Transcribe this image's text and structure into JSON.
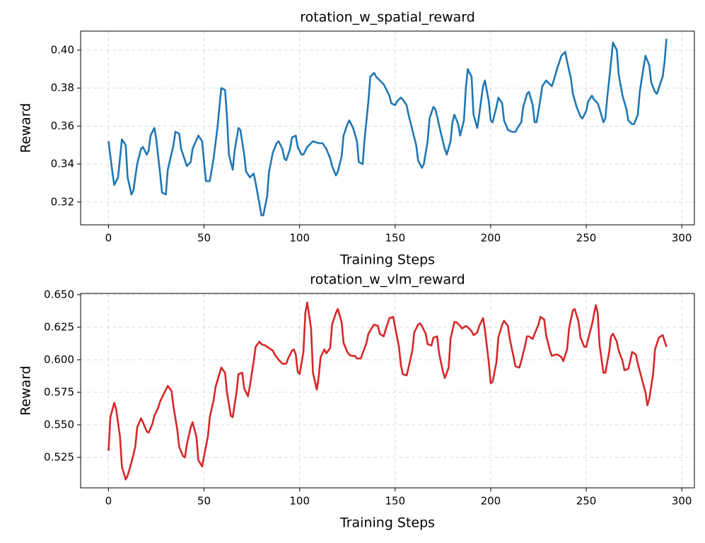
{
  "chart_data": [
    {
      "type": "line",
      "title": "rotation_w_spatial_reward",
      "xlabel": "Training Steps",
      "ylabel": "Reward",
      "color": "#1f77b4",
      "grid": true,
      "xlim": [
        -14.6,
        306.6
      ],
      "xticks": [
        0,
        50,
        100,
        150,
        200,
        250,
        300
      ],
      "ylim": [
        0.308,
        0.41
      ],
      "yticks": [
        0.32,
        0.34,
        0.36,
        0.38,
        {
          "value": 0.4,
          "label": "0.40"
        }
      ],
      "x": [
        0,
        2,
        3,
        5,
        7,
        9,
        10,
        12,
        13,
        15,
        17,
        18,
        20,
        21,
        22,
        24,
        25,
        27,
        28,
        30,
        31,
        34,
        35,
        37,
        38,
        40,
        41,
        43,
        44,
        47,
        49,
        50,
        51,
        53,
        55,
        57,
        59,
        61,
        62,
        63,
        65,
        66,
        68,
        69,
        71,
        72,
        74,
        76,
        77,
        79,
        80,
        81,
        83,
        84,
        86,
        88,
        89,
        91,
        92,
        93,
        95,
        96,
        98,
        99,
        101,
        102,
        104,
        106,
        107,
        110,
        112,
        114,
        116,
        117,
        119,
        120,
        122,
        123,
        125,
        126,
        128,
        130,
        131,
        133,
        134,
        136,
        137,
        139,
        140,
        142,
        144,
        145,
        147,
        148,
        150,
        151,
        153,
        154,
        156,
        157,
        159,
        161,
        162,
        164,
        165,
        167,
        168,
        170,
        171,
        172,
        174,
        176,
        177,
        179,
        180,
        181,
        183,
        184,
        186,
        187,
        188,
        190,
        191,
        193,
        194,
        196,
        197,
        199,
        200,
        201,
        203,
        204,
        206,
        207,
        209,
        211,
        213,
        214,
        216,
        217,
        219,
        220,
        222,
        223,
        224,
        226,
        227,
        229,
        231,
        232,
        233,
        235,
        237,
        239,
        240,
        242,
        243,
        245,
        247,
        248,
        250,
        251,
        253,
        254,
        256,
        257,
        259,
        260,
        261,
        263,
        264,
        266,
        267,
        269,
        271,
        272,
        274,
        275,
        277,
        278,
        280,
        281,
        283,
        284,
        286,
        287,
        288,
        290,
        291,
        292
      ],
      "values": [
        0.352,
        0.336,
        0.329,
        0.333,
        0.353,
        0.35,
        0.333,
        0.324,
        0.326,
        0.34,
        0.348,
        0.349,
        0.345,
        0.347,
        0.355,
        0.359,
        0.353,
        0.335,
        0.325,
        0.324,
        0.337,
        0.35,
        0.357,
        0.356,
        0.348,
        0.342,
        0.339,
        0.341,
        0.348,
        0.355,
        0.352,
        0.341,
        0.331,
        0.331,
        0.343,
        0.359,
        0.38,
        0.379,
        0.365,
        0.345,
        0.337,
        0.347,
        0.359,
        0.358,
        0.345,
        0.336,
        0.333,
        0.335,
        0.33,
        0.319,
        0.313,
        0.313,
        0.323,
        0.336,
        0.346,
        0.351,
        0.352,
        0.348,
        0.343,
        0.342,
        0.348,
        0.354,
        0.355,
        0.349,
        0.345,
        0.345,
        0.349,
        0.351,
        0.352,
        0.351,
        0.351,
        0.348,
        0.343,
        0.339,
        0.334,
        0.336,
        0.344,
        0.355,
        0.361,
        0.363,
        0.359,
        0.352,
        0.341,
        0.34,
        0.353,
        0.373,
        0.386,
        0.388,
        0.386,
        0.384,
        0.382,
        0.38,
        0.376,
        0.372,
        0.371,
        0.373,
        0.375,
        0.374,
        0.371,
        0.366,
        0.358,
        0.35,
        0.342,
        0.338,
        0.34,
        0.352,
        0.364,
        0.37,
        0.369,
        0.365,
        0.356,
        0.348,
        0.345,
        0.352,
        0.362,
        0.366,
        0.361,
        0.355,
        0.363,
        0.38,
        0.39,
        0.386,
        0.366,
        0.359,
        0.366,
        0.381,
        0.384,
        0.373,
        0.363,
        0.362,
        0.37,
        0.375,
        0.372,
        0.363,
        0.358,
        0.357,
        0.357,
        0.359,
        0.362,
        0.37,
        0.377,
        0.378,
        0.371,
        0.362,
        0.362,
        0.374,
        0.381,
        0.384,
        0.382,
        0.381,
        0.384,
        0.391,
        0.397,
        0.399,
        0.394,
        0.385,
        0.377,
        0.37,
        0.365,
        0.364,
        0.368,
        0.373,
        0.376,
        0.374,
        0.372,
        0.369,
        0.362,
        0.364,
        0.375,
        0.394,
        0.404,
        0.4,
        0.387,
        0.376,
        0.369,
        0.363,
        0.361,
        0.361,
        0.366,
        0.378,
        0.391,
        0.397,
        0.392,
        0.383,
        0.378,
        0.377,
        0.38,
        0.386,
        0.394,
        0.406
      ]
    },
    {
      "type": "line",
      "title": "rotation_w_vlm_reward",
      "xlabel": "Training Steps",
      "ylabel": "Reward",
      "color": "#d62728",
      "grid": true,
      "xlim": [
        -14.6,
        306.6
      ],
      "xticks": [
        0,
        50,
        100,
        150,
        200,
        250,
        300
      ],
      "ylim": [
        0.5016,
        0.651
      ],
      "yticks": [
        0.525,
        {
          "value": 0.55,
          "label": "0.550"
        },
        0.575,
        {
          "value": 0.6,
          "label": "0.600"
        },
        0.625,
        {
          "value": 0.65,
          "label": "0.650"
        }
      ],
      "x": [
        0,
        1,
        3,
        4,
        6,
        7,
        9,
        10,
        12,
        14,
        15,
        17,
        18,
        20,
        21,
        23,
        24,
        26,
        27,
        29,
        31,
        33,
        34,
        36,
        37,
        39,
        40,
        41,
        43,
        44,
        46,
        47,
        49,
        50,
        52,
        53,
        55,
        56,
        58,
        59,
        61,
        62,
        64,
        65,
        67,
        68,
        70,
        71,
        73,
        74,
        76,
        77,
        79,
        80,
        82,
        84,
        86,
        87,
        89,
        91,
        93,
        94,
        96,
        97,
        98,
        99,
        100,
        102,
        103,
        104,
        106,
        107,
        109,
        110,
        111,
        113,
        114,
        116,
        117,
        119,
        120,
        122,
        123,
        125,
        126,
        127,
        129,
        130,
        132,
        133,
        135,
        136,
        138,
        139,
        141,
        142,
        144,
        145,
        147,
        149,
        150,
        152,
        153,
        154,
        156,
        157,
        159,
        160,
        162,
        163,
        164,
        166,
        167,
        169,
        170,
        172,
        173,
        175,
        176,
        178,
        179,
        181,
        182,
        184,
        185,
        187,
        188,
        190,
        191,
        193,
        194,
        196,
        197,
        199,
        200,
        201,
        203,
        204,
        206,
        207,
        209,
        210,
        212,
        213,
        215,
        216,
        218,
        219,
        220,
        222,
        223,
        225,
        226,
        228,
        229,
        231,
        232,
        234,
        235,
        237,
        238,
        240,
        241,
        243,
        244,
        246,
        247,
        249,
        250,
        251,
        253,
        255,
        256,
        257,
        259,
        260,
        262,
        263,
        264,
        266,
        267,
        269,
        270,
        272,
        273,
        274,
        276,
        277,
        279,
        281,
        282,
        283,
        285,
        286,
        288,
        290,
        292
      ],
      "values": [
        0.53,
        0.556,
        0.567,
        0.562,
        0.541,
        0.518,
        0.508,
        0.511,
        0.521,
        0.533,
        0.548,
        0.555,
        0.552,
        0.545,
        0.544,
        0.551,
        0.557,
        0.563,
        0.568,
        0.574,
        0.58,
        0.576,
        0.564,
        0.546,
        0.533,
        0.526,
        0.525,
        0.535,
        0.548,
        0.552,
        0.541,
        0.523,
        0.518,
        0.526,
        0.541,
        0.556,
        0.569,
        0.579,
        0.589,
        0.594,
        0.59,
        0.575,
        0.557,
        0.556,
        0.575,
        0.589,
        0.59,
        0.578,
        0.572,
        0.58,
        0.599,
        0.61,
        0.614,
        0.612,
        0.611,
        0.609,
        0.607,
        0.604,
        0.6,
        0.597,
        0.597,
        0.601,
        0.607,
        0.608,
        0.604,
        0.591,
        0.589,
        0.606,
        0.636,
        0.644,
        0.624,
        0.59,
        0.577,
        0.587,
        0.602,
        0.608,
        0.605,
        0.609,
        0.627,
        0.636,
        0.639,
        0.629,
        0.613,
        0.606,
        0.604,
        0.603,
        0.603,
        0.601,
        0.601,
        0.605,
        0.613,
        0.62,
        0.625,
        0.627,
        0.626,
        0.62,
        0.618,
        0.623,
        0.632,
        0.633,
        0.625,
        0.61,
        0.596,
        0.589,
        0.588,
        0.594,
        0.607,
        0.621,
        0.627,
        0.628,
        0.626,
        0.62,
        0.612,
        0.611,
        0.617,
        0.618,
        0.605,
        0.591,
        0.586,
        0.594,
        0.616,
        0.629,
        0.629,
        0.626,
        0.624,
        0.626,
        0.625,
        0.622,
        0.619,
        0.621,
        0.626,
        0.632,
        0.623,
        0.598,
        0.582,
        0.583,
        0.598,
        0.617,
        0.627,
        0.63,
        0.626,
        0.616,
        0.602,
        0.595,
        0.594,
        0.599,
        0.611,
        0.618,
        0.618,
        0.616,
        0.62,
        0.627,
        0.633,
        0.631,
        0.619,
        0.607,
        0.603,
        0.604,
        0.604,
        0.602,
        0.599,
        0.608,
        0.624,
        0.638,
        0.639,
        0.629,
        0.617,
        0.61,
        0.61,
        0.616,
        0.627,
        0.642,
        0.636,
        0.611,
        0.59,
        0.59,
        0.606,
        0.618,
        0.62,
        0.614,
        0.607,
        0.599,
        0.592,
        0.593,
        0.599,
        0.606,
        0.604,
        0.597,
        0.586,
        0.575,
        0.565,
        0.57,
        0.589,
        0.608,
        0.617,
        0.619,
        0.61
      ]
    }
  ]
}
